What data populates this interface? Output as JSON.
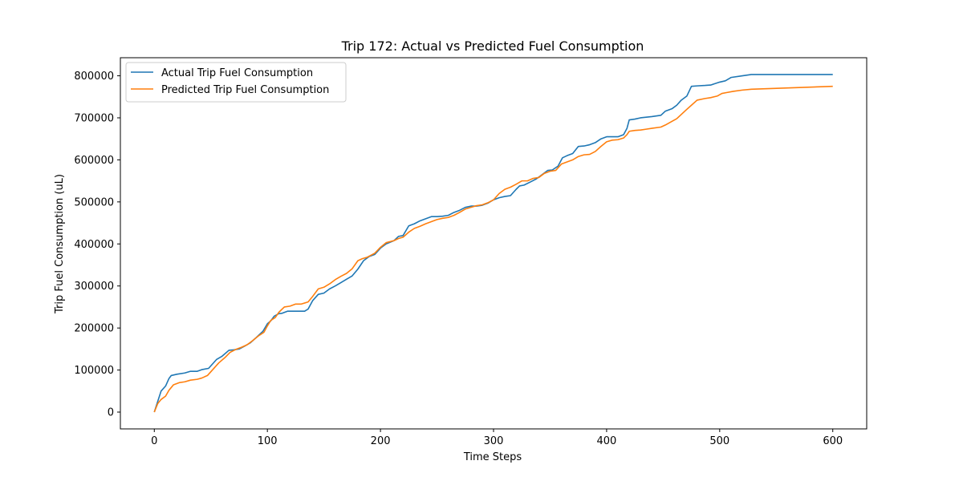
{
  "chart_data": {
    "type": "line",
    "title": "Trip 172: Actual vs Predicted Fuel Consumption",
    "xlabel": "Time Steps",
    "ylabel": "Trip Fuel Consumption (uL)",
    "xlim": [
      -30,
      630
    ],
    "ylim": [
      -40000,
      843000
    ],
    "xticks": [
      0,
      100,
      200,
      300,
      400,
      500,
      600
    ],
    "yticks": [
      0,
      100000,
      200000,
      300000,
      400000,
      500000,
      600000,
      700000,
      800000
    ],
    "grid": false,
    "legend_position": "upper-left",
    "series": [
      {
        "name": "Actual Trip Fuel Consumption",
        "color": "#1f77b4",
        "x": [
          0,
          3,
          6,
          10,
          13,
          15,
          20,
          27,
          32,
          38,
          42,
          48,
          55,
          60,
          66,
          70,
          75,
          80,
          85,
          90,
          96,
          100,
          103,
          106,
          110,
          113,
          118,
          122,
          127,
          133,
          136,
          140,
          145,
          150,
          155,
          160,
          165,
          170,
          175,
          180,
          185,
          190,
          195,
          200,
          205,
          212,
          216,
          220,
          225,
          230,
          235,
          240,
          245,
          250,
          255,
          260,
          265,
          270,
          275,
          280,
          285,
          290,
          295,
          300,
          305,
          310,
          315,
          320,
          323,
          327,
          333,
          338,
          343,
          348,
          352,
          357,
          361,
          365,
          370,
          375,
          380,
          385,
          390,
          395,
          400,
          405,
          410,
          415,
          418,
          420,
          425,
          430,
          440,
          448,
          452,
          458,
          462,
          466,
          471,
          475,
          480,
          487,
          492,
          500,
          505,
          510,
          520,
          528,
          600
        ],
        "y": [
          0,
          25000,
          50000,
          62000,
          80000,
          87000,
          90000,
          93000,
          97000,
          97000,
          101000,
          104000,
          125000,
          133000,
          147000,
          148000,
          150000,
          157000,
          165000,
          177000,
          192000,
          210000,
          217000,
          228000,
          234000,
          235000,
          240000,
          240000,
          240000,
          240000,
          245000,
          265000,
          280000,
          283000,
          293000,
          300000,
          308000,
          316000,
          324000,
          340000,
          360000,
          370000,
          375000,
          390000,
          400000,
          408000,
          418000,
          420000,
          443000,
          448000,
          455000,
          460000,
          465000,
          465000,
          466000,
          468000,
          475000,
          480000,
          487000,
          490000,
          490000,
          492000,
          497000,
          505000,
          510000,
          513000,
          515000,
          530000,
          538000,
          540000,
          548000,
          555000,
          565000,
          575000,
          576000,
          585000,
          605000,
          610000,
          615000,
          632000,
          633000,
          636000,
          641000,
          650000,
          655000,
          655000,
          655000,
          660000,
          675000,
          695000,
          697000,
          700000,
          703000,
          706000,
          716000,
          722000,
          730000,
          742000,
          752000,
          775000,
          776000,
          777000,
          778000,
          785000,
          788000,
          796000,
          800000,
          803000,
          803000
        ]
      },
      {
        "name": "Predicted Trip Fuel Consumption",
        "color": "#ff7f0e",
        "x": [
          0,
          3,
          6,
          10,
          13,
          17,
          22,
          27,
          32,
          38,
          42,
          47,
          52,
          57,
          63,
          67,
          72,
          77,
          82,
          87,
          92,
          97,
          100,
          103,
          107,
          110,
          115,
          120,
          125,
          130,
          136,
          140,
          145,
          150,
          155,
          160,
          165,
          170,
          175,
          180,
          184,
          188,
          195,
          200,
          205,
          212,
          216,
          220,
          225,
          230,
          235,
          240,
          245,
          250,
          255,
          260,
          265,
          270,
          275,
          280,
          285,
          290,
          295,
          300,
          305,
          310,
          315,
          320,
          325,
          330,
          335,
          340,
          345,
          350,
          355,
          360,
          365,
          370,
          375,
          380,
          385,
          390,
          395,
          400,
          405,
          410,
          415,
          418,
          420,
          425,
          430,
          435,
          440,
          448,
          452,
          458,
          462,
          466,
          470,
          475,
          480,
          487,
          492,
          498,
          502,
          506,
          512,
          520,
          528,
          600
        ],
        "y": [
          0,
          20000,
          30000,
          38000,
          52000,
          65000,
          70000,
          72000,
          76000,
          78000,
          81000,
          87000,
          102000,
          117000,
          131000,
          142000,
          149000,
          154000,
          160000,
          170000,
          181000,
          190000,
          205000,
          218000,
          225000,
          237000,
          250000,
          252000,
          257000,
          257000,
          262000,
          275000,
          293000,
          297000,
          305000,
          315000,
          323000,
          330000,
          341000,
          360000,
          365000,
          368000,
          378000,
          392000,
          403000,
          408000,
          413000,
          416000,
          428000,
          437000,
          442000,
          448000,
          453000,
          458000,
          461000,
          463000,
          468000,
          475000,
          483000,
          487000,
          491000,
          493000,
          498000,
          505000,
          520000,
          530000,
          535000,
          542000,
          550000,
          550000,
          556000,
          558000,
          568000,
          573000,
          575000,
          590000,
          595000,
          600000,
          608000,
          612000,
          613000,
          620000,
          632000,
          643000,
          647000,
          648000,
          652000,
          660000,
          668000,
          670000,
          671000,
          673000,
          675000,
          678000,
          683000,
          692000,
          698000,
          708000,
          718000,
          730000,
          742000,
          746000,
          748000,
          752000,
          758000,
          760000,
          763000,
          766000,
          768000,
          775000
        ]
      }
    ]
  }
}
